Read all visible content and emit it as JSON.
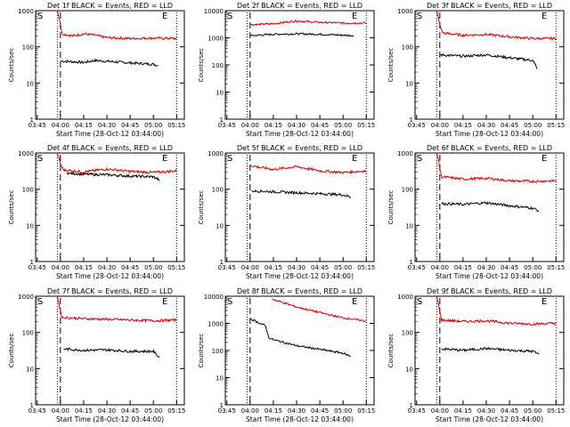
{
  "chart_data": [
    {
      "type": "line",
      "title": "Det 1f BLACK = Events, RED = LLD",
      "xlabel": "Start Time (28-Oct-12 03:44:00)",
      "ylabel": "Counts/sec",
      "y_scale": "log",
      "ylim": [
        1,
        1000
      ],
      "y_ticks": [
        "1",
        "10",
        "100",
        "1000"
      ],
      "x_ticks": [
        "03:45",
        "04:00",
        "04:15",
        "04:30",
        "04:45",
        "05:00",
        "05:15"
      ],
      "markers": [
        "S",
        "E"
      ],
      "series": [
        {
          "name": "Events",
          "color": "#000000",
          "points": [
            [
              "04:00",
              40
            ],
            [
              "04:03",
              40
            ],
            [
              "04:15",
              37
            ],
            [
              "04:22",
              42
            ],
            [
              "04:30",
              40
            ],
            [
              "04:45",
              36
            ],
            [
              "05:00",
              33
            ],
            [
              "05:03",
              30
            ]
          ]
        },
        {
          "name": "LLD",
          "color": "#d00000",
          "points": [
            [
              "03:58",
              1000
            ],
            [
              "04:00",
              450
            ],
            [
              "04:01",
              230
            ],
            [
              "04:08",
              200
            ],
            [
              "04:15",
              230
            ],
            [
              "04:22",
              210
            ],
            [
              "04:30",
              180
            ],
            [
              "04:45",
              170
            ],
            [
              "05:00",
              175
            ],
            [
              "05:15",
              170
            ]
          ]
        }
      ]
    },
    {
      "type": "line",
      "title": "Det 2f BLACK = Events, RED = LLD",
      "xlabel": "Start Time (28-Oct-12 03:44:00)",
      "ylabel": "Counts/sec",
      "y_scale": "log",
      "ylim": [
        1,
        10000
      ],
      "y_ticks": [
        "1",
        "10",
        "100",
        "1000",
        "10000"
      ],
      "x_ticks": [
        "03:45",
        "04:00",
        "04:15",
        "04:30",
        "04:45",
        "05:00",
        "05:15"
      ],
      "markers": [
        "S",
        "E"
      ],
      "series": [
        {
          "name": "Events",
          "color": "#000000",
          "points": [
            [
              "04:00",
              1200
            ],
            [
              "04:15",
              1350
            ],
            [
              "04:30",
              1400
            ],
            [
              "04:45",
              1350
            ],
            [
              "05:00",
              1250
            ],
            [
              "05:07",
              1200
            ]
          ]
        },
        {
          "name": "LLD",
          "color": "#d00000",
          "points": [
            [
              "04:00",
              3000
            ],
            [
              "04:15",
              3300
            ],
            [
              "04:30",
              4200
            ],
            [
              "04:45",
              3700
            ],
            [
              "05:00",
              3500
            ],
            [
              "05:15",
              3500
            ]
          ]
        }
      ]
    },
    {
      "type": "line",
      "title": "Det 3f BLACK = Events, RED = LLD",
      "xlabel": "Start Time (28-Oct-12 03:44:00)",
      "ylabel": "Counts/sec",
      "y_scale": "log",
      "ylim": [
        1,
        1000
      ],
      "y_ticks": [
        "1",
        "10",
        "100",
        "1000"
      ],
      "x_ticks": [
        "03:45",
        "04:00",
        "04:15",
        "04:30",
        "04:45",
        "05:00",
        "05:15"
      ],
      "markers": [
        "S",
        "E"
      ],
      "series": [
        {
          "name": "Events",
          "color": "#000000",
          "points": [
            [
              "04:00",
              60
            ],
            [
              "04:15",
              55
            ],
            [
              "04:30",
              60
            ],
            [
              "04:45",
              50
            ],
            [
              "05:00",
              42
            ],
            [
              "05:03",
              25
            ]
          ]
        },
        {
          "name": "LLD",
          "color": "#d00000",
          "points": [
            [
              "03:58",
              1000
            ],
            [
              "04:00",
              400
            ],
            [
              "04:02",
              240
            ],
            [
              "04:15",
              210
            ],
            [
              "04:30",
              220
            ],
            [
              "04:45",
              190
            ],
            [
              "05:00",
              170
            ],
            [
              "05:15",
              170
            ]
          ]
        }
      ]
    },
    {
      "type": "line",
      "title": "Det 4f BLACK = Events, RED = LLD",
      "xlabel": "Start Time (28-Oct-12 03:44:00)",
      "ylabel": "Counts/sec",
      "y_scale": "log",
      "ylim": [
        1,
        1000
      ],
      "y_ticks": [
        "1",
        "10",
        "100",
        "1000"
      ],
      "x_ticks": [
        "03:45",
        "04:00",
        "04:15",
        "04:30",
        "04:45",
        "05:00",
        "05:15"
      ],
      "markers": [
        "S",
        "E"
      ],
      "series": [
        {
          "name": "Events",
          "color": "#000000",
          "points": [
            [
              "04:04",
              280
            ],
            [
              "04:15",
              260
            ],
            [
              "04:30",
              250
            ],
            [
              "04:45",
              230
            ],
            [
              "05:00",
              220
            ],
            [
              "05:04",
              180
            ]
          ]
        },
        {
          "name": "LLD",
          "color": "#d00000",
          "points": [
            [
              "03:58",
              1000
            ],
            [
              "04:00",
              500
            ],
            [
              "04:02",
              340
            ],
            [
              "04:15",
              300
            ],
            [
              "04:30",
              360
            ],
            [
              "04:45",
              310
            ],
            [
              "05:00",
              290
            ],
            [
              "05:15",
              320
            ]
          ]
        }
      ]
    },
    {
      "type": "line",
      "title": "Det 5f BLACK = Events, RED = LLD",
      "xlabel": "Start Time (28-Oct-12 03:44:00)",
      "ylabel": "Counts/sec",
      "y_scale": "log",
      "ylim": [
        1,
        1000
      ],
      "y_ticks": [
        "1",
        "10",
        "100",
        "1000"
      ],
      "x_ticks": [
        "03:45",
        "04:00",
        "04:15",
        "04:30",
        "04:45",
        "05:00",
        "05:15"
      ],
      "markers": [
        "S",
        "E"
      ],
      "series": [
        {
          "name": "Events",
          "color": "#000000",
          "points": [
            [
              "04:01",
              90
            ],
            [
              "04:15",
              85
            ],
            [
              "04:30",
              80
            ],
            [
              "04:45",
              75
            ],
            [
              "05:00",
              70
            ],
            [
              "05:05",
              60
            ]
          ]
        },
        {
          "name": "LLD",
          "color": "#d00000",
          "points": [
            [
              "04:00",
              450
            ],
            [
              "04:15",
              350
            ],
            [
              "04:30",
              420
            ],
            [
              "04:45",
              320
            ],
            [
              "05:00",
              290
            ],
            [
              "05:15",
              320
            ]
          ]
        }
      ]
    },
    {
      "type": "line",
      "title": "Det 6f BLACK = Events, RED = LLD",
      "xlabel": "Start Time (28-Oct-12 03:44:00)",
      "ylabel": "Counts/sec",
      "y_scale": "log",
      "ylim": [
        1,
        1000
      ],
      "y_ticks": [
        "1",
        "10",
        "100",
        "1000"
      ],
      "x_ticks": [
        "03:45",
        "04:00",
        "04:15",
        "04:30",
        "04:45",
        "05:00",
        "05:15"
      ],
      "markers": [
        "S",
        "E"
      ],
      "series": [
        {
          "name": "Events",
          "color": "#000000",
          "points": [
            [
              "04:01",
              40
            ],
            [
              "04:15",
              38
            ],
            [
              "04:30",
              42
            ],
            [
              "04:45",
              35
            ],
            [
              "05:00",
              30
            ],
            [
              "05:04",
              25
            ]
          ]
        },
        {
          "name": "LLD",
          "color": "#d00000",
          "points": [
            [
              "03:58",
              1000
            ],
            [
              "04:00",
              400
            ],
            [
              "04:01",
              220
            ],
            [
              "04:15",
              190
            ],
            [
              "04:30",
              200
            ],
            [
              "04:45",
              170
            ],
            [
              "05:00",
              165
            ],
            [
              "05:15",
              170
            ]
          ]
        }
      ]
    },
    {
      "type": "line",
      "title": "Det 7f BLACK = Events, RED = LLD",
      "xlabel": "Start Time (28-Oct-12 03:44:00)",
      "ylabel": "Counts/sec",
      "y_scale": "log",
      "ylim": [
        1,
        1000
      ],
      "y_ticks": [
        "1",
        "10",
        "100",
        "1000"
      ],
      "x_ticks": [
        "03:45",
        "04:00",
        "04:15",
        "04:30",
        "04:45",
        "05:00",
        "05:15"
      ],
      "markers": [
        "S",
        "E"
      ],
      "series": [
        {
          "name": "Events",
          "color": "#000000",
          "points": [
            [
              "04:02",
              35
            ],
            [
              "04:15",
              32
            ],
            [
              "04:30",
              33
            ],
            [
              "04:45",
              30
            ],
            [
              "05:00",
              30
            ],
            [
              "05:04",
              20
            ]
          ]
        },
        {
          "name": "LLD",
          "color": "#d00000",
          "points": [
            [
              "03:58",
              1000
            ],
            [
              "04:00",
              400
            ],
            [
              "04:01",
              260
            ],
            [
              "04:15",
              240
            ],
            [
              "04:30",
              230
            ],
            [
              "04:45",
              220
            ],
            [
              "05:00",
              210
            ],
            [
              "05:15",
              220
            ]
          ]
        }
      ]
    },
    {
      "type": "line",
      "title": "Det 8f BLACK = Events, RED = LLD",
      "xlabel": "Start Time (28-Oct-12 03:44:00)",
      "ylabel": "Counts/sec",
      "y_scale": "log",
      "ylim": [
        1,
        10000
      ],
      "y_ticks": [
        "1",
        "10",
        "100",
        "1000",
        "10000"
      ],
      "x_ticks": [
        "03:45",
        "04:00",
        "04:15",
        "04:30",
        "04:45",
        "05:00",
        "05:15"
      ],
      "markers": [
        "S",
        "E"
      ],
      "series": [
        {
          "name": "Events",
          "color": "#000000",
          "points": [
            [
              "04:00",
              1500
            ],
            [
              "04:10",
              800
            ],
            [
              "04:12",
              300
            ],
            [
              "04:15",
              250
            ],
            [
              "04:30",
              150
            ],
            [
              "04:45",
              110
            ],
            [
              "05:00",
              80
            ],
            [
              "05:05",
              60
            ]
          ]
        },
        {
          "name": "LLD",
          "color": "#d00000",
          "points": [
            [
              "04:14",
              8000
            ],
            [
              "04:30",
              4000
            ],
            [
              "04:45",
              2500
            ],
            [
              "05:00",
              1600
            ],
            [
              "05:15",
              1200
            ]
          ]
        }
      ]
    },
    {
      "type": "line",
      "title": "Det 9f BLACK = Events, RED = LLD",
      "xlabel": "Start Time (28-Oct-12 03:44:00)",
      "ylabel": "Counts/sec",
      "y_scale": "log",
      "ylim": [
        1,
        1000
      ],
      "y_ticks": [
        "1",
        "10",
        "100",
        "1000"
      ],
      "x_ticks": [
        "03:45",
        "04:00",
        "04:15",
        "04:30",
        "04:45",
        "05:00",
        "05:15"
      ],
      "markers": [
        "S",
        "E"
      ],
      "series": [
        {
          "name": "Events",
          "color": "#000000",
          "points": [
            [
              "04:01",
              35
            ],
            [
              "04:15",
              32
            ],
            [
              "04:30",
              36
            ],
            [
              "04:45",
              32
            ],
            [
              "05:00",
              30
            ],
            [
              "05:04",
              25
            ]
          ]
        },
        {
          "name": "LLD",
          "color": "#d00000",
          "points": [
            [
              "03:58",
              1000
            ],
            [
              "04:00",
              400
            ],
            [
              "04:01",
              220
            ],
            [
              "04:15",
              200
            ],
            [
              "04:30",
              210
            ],
            [
              "04:45",
              180
            ],
            [
              "05:00",
              170
            ],
            [
              "05:15",
              180
            ]
          ]
        }
      ]
    }
  ],
  "vlines": {
    "dashed": "04:00",
    "dotted_left": "03:58",
    "dotted_right": "05:15"
  }
}
